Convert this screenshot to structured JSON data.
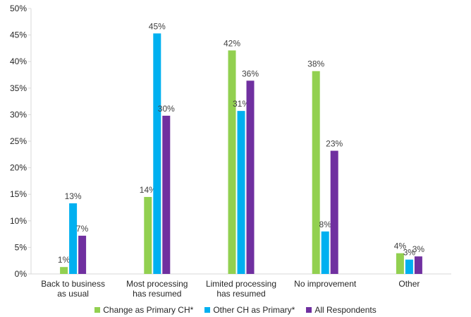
{
  "chart_data": {
    "type": "bar",
    "categories": [
      [
        "Back to business",
        "as usual"
      ],
      [
        "Most processing",
        "has resumed"
      ],
      [
        "Limited processing",
        "has resumed"
      ],
      [
        "No improvement"
      ],
      [
        "Other"
      ]
    ],
    "series": [
      {
        "name": "Change as Primary CH*",
        "color": "#92d050",
        "values": [
          1.3,
          14.5,
          42.1,
          38.2,
          3.9
        ],
        "labels": [
          "1%",
          "14%",
          "42%",
          "38%",
          "4%"
        ]
      },
      {
        "name": "Other CH as Primary*",
        "color": "#00b0f0",
        "values": [
          13.3,
          45.3,
          30.7,
          8.0,
          2.7
        ],
        "labels": [
          "13%",
          "45%",
          "31%",
          "8%",
          "3%"
        ]
      },
      {
        "name": "All Respondents",
        "color": "#7030a0",
        "values": [
          7.2,
          29.8,
          36.4,
          23.2,
          3.3
        ],
        "labels": [
          "7%",
          "30%",
          "36%",
          "23%",
          "3%"
        ]
      }
    ],
    "yticks": [
      "0%",
      "5%",
      "10%",
      "15%",
      "20%",
      "25%",
      "30%",
      "35%",
      "40%",
      "45%",
      "50%"
    ],
    "ylim": [
      0,
      50
    ],
    "grid": false,
    "legend_position": "bottom"
  }
}
